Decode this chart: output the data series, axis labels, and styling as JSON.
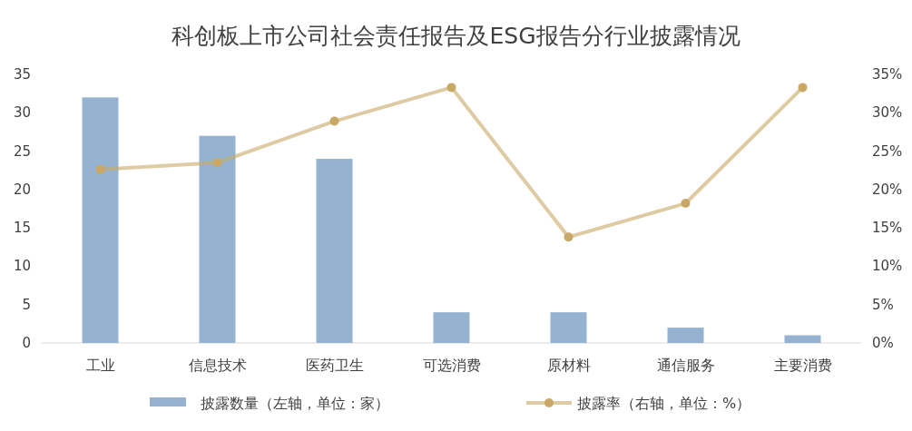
{
  "chart_data": {
    "type": "bar",
    "title": "科创板上市公司社会责任报告及ESG报告分行业披露情况",
    "categories": [
      "工业",
      "信息技术",
      "医药卫生",
      "可选消费",
      "原材料",
      "通信服务",
      "主要消费"
    ],
    "series": [
      {
        "name": "披露数量（左轴，单位：家）",
        "color": "#95b3d0",
        "values": [
          32,
          27,
          24,
          4,
          4,
          2,
          1
        ]
      },
      {
        "name": "披露率（右轴，单位：%）",
        "type": "line",
        "axis": "y2",
        "color": "#c9a865",
        "marker": "circle",
        "values": [
          22.6,
          23.5,
          28.9,
          33.3,
          13.8,
          18.2,
          33.3
        ]
      }
    ],
    "ylim": [
      0,
      35
    ],
    "yticks": [
      0,
      5,
      10,
      15,
      20,
      25,
      30,
      35
    ],
    "y2lim": [
      0,
      35
    ],
    "y2ticks": [
      {
        "value": 0,
        "label": "0%"
      },
      {
        "value": 5,
        "label": "5%"
      },
      {
        "value": 10,
        "label": "10%"
      },
      {
        "value": 15,
        "label": "15%"
      },
      {
        "value": 20,
        "label": "20%"
      },
      {
        "value": 25,
        "label": "25%"
      },
      {
        "value": 30,
        "label": "30%"
      },
      {
        "value": 35,
        "label": "35%"
      }
    ],
    "grid": false,
    "legend": "bottom"
  }
}
